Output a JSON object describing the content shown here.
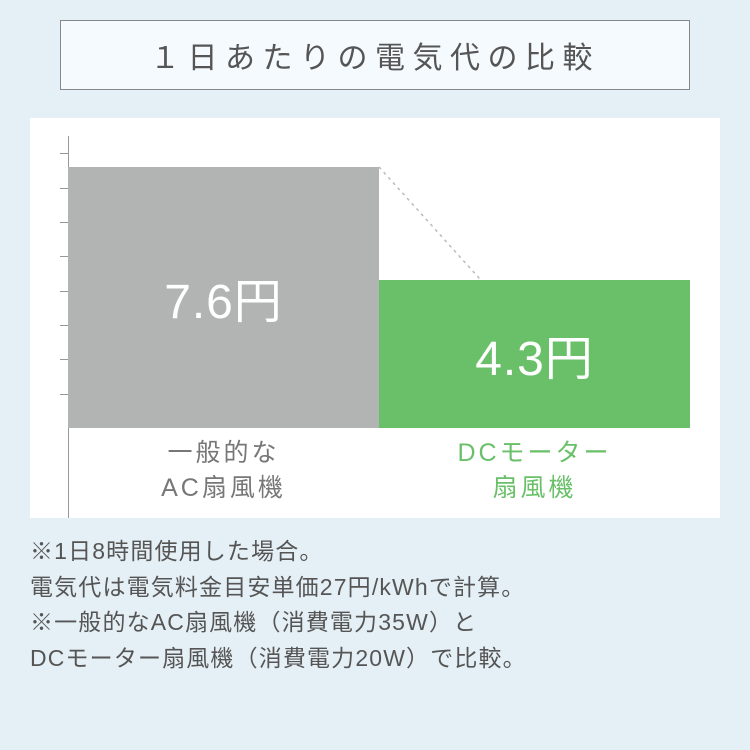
{
  "title": "１日あたりの電気代の比較",
  "chart": {
    "type": "bar",
    "background_color": "#ffffff",
    "page_background": "#e5f0f6",
    "axis_color": "#999999",
    "ymax": 8.5,
    "tick_values": [
      1,
      2,
      3,
      4,
      5,
      6,
      7,
      8
    ],
    "bars": [
      {
        "label_line1": "一般的な",
        "label_line2": "AC扇風機",
        "label_color": "#777777",
        "value": 7.6,
        "value_text": "7.6円",
        "fill": "#b2b3b3",
        "text_color": "#ffffff"
      },
      {
        "label_line1": "DCモーター",
        "label_line2": "扇風機",
        "label_color": "#69c069",
        "value": 4.3,
        "value_text": "4.3円",
        "fill": "#69c069",
        "text_color": "#ffffff"
      }
    ],
    "connector": {
      "color": "#bbbbbb",
      "dash": "3,4",
      "width": 1.5
    },
    "value_fontsize": 48,
    "label_fontsize": 25
  },
  "footnote": "※1日8時間使用した場合。\n電気代は電気料金目安単価27円/kWhで計算。\n※一般的なAC扇風機（消費電力35W）と\nDCモーター扇風機（消費電力20W）で比較。"
}
